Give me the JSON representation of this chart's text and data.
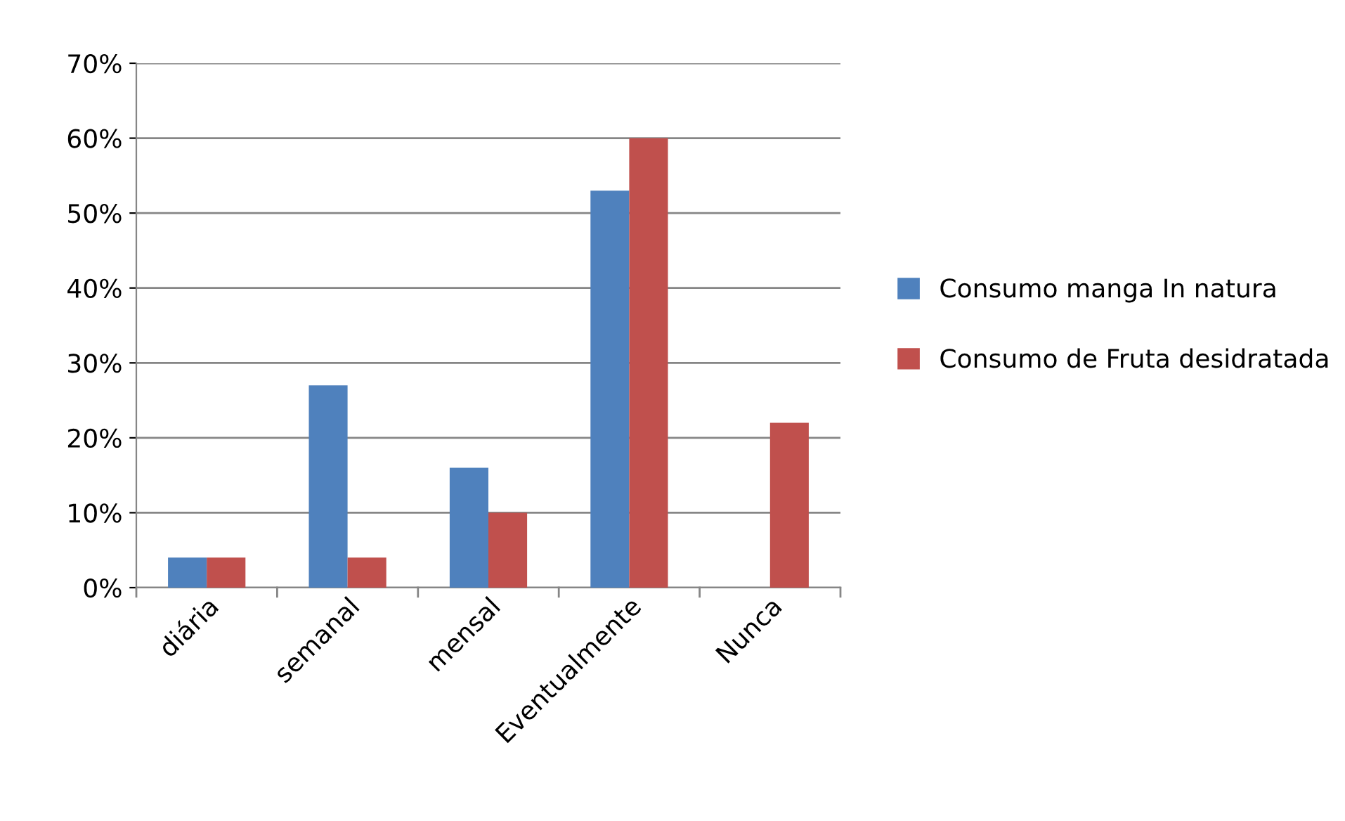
{
  "chart_data": {
    "type": "bar",
    "categories": [
      "diária",
      "semanal",
      "mensal",
      "Eventualmente",
      "Nunca"
    ],
    "series": [
      {
        "name": "Consumo manga In natura",
        "color": "#4f81bd",
        "values": [
          4,
          27,
          16,
          53,
          0
        ]
      },
      {
        "name": "Consumo de Fruta desidratada",
        "color": "#c0504d",
        "values": [
          4,
          4,
          10,
          60,
          22
        ]
      }
    ],
    "ylim": [
      0,
      70
    ],
    "yticks": [
      {
        "value": 0,
        "label": "0%"
      },
      {
        "value": 10,
        "label": "10%"
      },
      {
        "value": 20,
        "label": "20%"
      },
      {
        "value": 30,
        "label": "30%"
      },
      {
        "value": 40,
        "label": "40%"
      },
      {
        "value": 50,
        "label": "50%"
      },
      {
        "value": 60,
        "label": "60%"
      },
      {
        "value": 70,
        "label": "70%"
      }
    ],
    "grid": "y",
    "legend": "right"
  }
}
